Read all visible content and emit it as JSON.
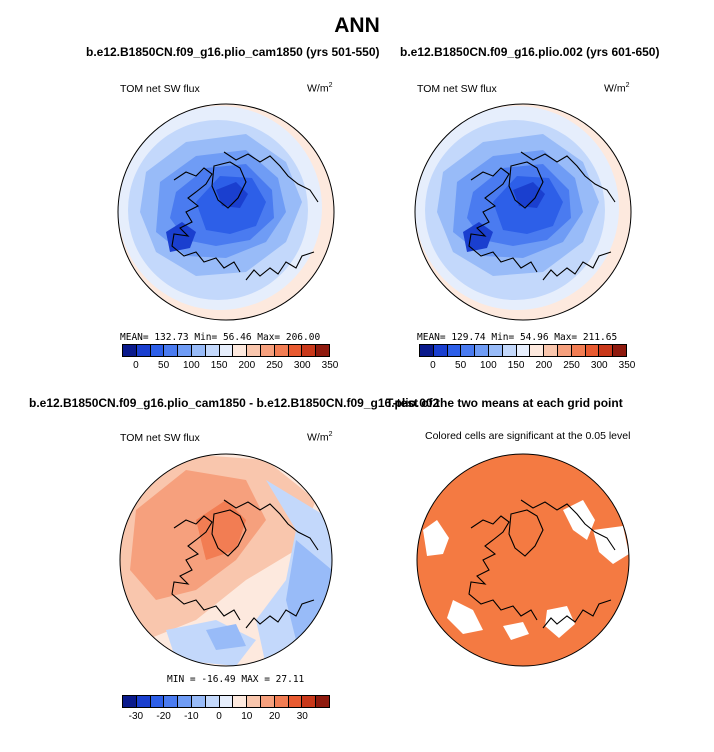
{
  "title": "ANN",
  "panels": [
    {
      "title": "b.e12.B1850CN.f09_g16.plio_cam1850 (yrs 501-550)",
      "left_label": "TOM net SW flux",
      "units_base": "W/m",
      "units_exp": "2",
      "stats": "MEAN= 132.73  Min=  56.46  Max= 206.00"
    },
    {
      "title": "b.e12.B1850CN.f09_g16.plio.002 (yrs 601-650)",
      "left_label": "TOM net SW flux",
      "units_base": "W/m",
      "units_exp": "2",
      "stats": "MEAN= 129.74  Min=  54.96  Max= 211.65"
    },
    {
      "title": "b.e12.B1850CN.f09_g16.plio_cam1850 - b.e12.B1850CN.f09_g16.plio.002",
      "left_label": "TOM net SW flux",
      "units_base": "W/m",
      "units_exp": "2",
      "stats": "MIN =  -16.49  MAX =   27.11"
    },
    {
      "title": "T-test of the two means at each grid point",
      "subtitle": "Colored cells are significant at the 0.05 level"
    }
  ],
  "chart_data": [
    {
      "type": "heatmap",
      "title": "b.e12.B1850CN.f09_g16.plio_cam1850 (yrs 501-550)",
      "variable": "TOM net SW flux",
      "units": "W/m2",
      "projection": "north polar stereographic",
      "mean": 132.73,
      "min": 56.46,
      "max": 206.0,
      "colorbar_ticks": [
        0,
        50,
        100,
        150,
        200,
        250,
        300,
        350
      ],
      "colorbar_colors": [
        "#0a1a8c",
        "#1a3fcf",
        "#2d5fe8",
        "#4a7bf0",
        "#6f9cf5",
        "#98bbf8",
        "#c3d8fb",
        "#e6eefc",
        "#fde9de",
        "#f9c6ad",
        "#f6a07d",
        "#f27d53",
        "#e85a30",
        "#c9381a",
        "#8f1a0e"
      ],
      "colorbar_ticks_text": [
        "0",
        "50",
        "100",
        "150",
        "200",
        "250",
        "300",
        "350"
      ]
    },
    {
      "type": "heatmap",
      "title": "b.e12.B1850CN.f09_g16.plio.002 (yrs 601-650)",
      "variable": "TOM net SW flux",
      "units": "W/m2",
      "projection": "north polar stereographic",
      "mean": 129.74,
      "min": 54.96,
      "max": 211.65,
      "colorbar_ticks": [
        0,
        50,
        100,
        150,
        200,
        250,
        300,
        350
      ],
      "colorbar_colors": [
        "#0a1a8c",
        "#1a3fcf",
        "#2d5fe8",
        "#4a7bf0",
        "#6f9cf5",
        "#98bbf8",
        "#c3d8fb",
        "#e6eefc",
        "#fde9de",
        "#f9c6ad",
        "#f6a07d",
        "#f27d53",
        "#e85a30",
        "#c9381a",
        "#8f1a0e"
      ],
      "colorbar_ticks_text": [
        "0",
        "50",
        "100",
        "150",
        "200",
        "250",
        "300",
        "350"
      ]
    },
    {
      "type": "heatmap",
      "title": "b.e12.B1850CN.f09_g16.plio_cam1850 - b.e12.B1850CN.f09_g16.plio.002",
      "variable": "TOM net SW flux",
      "units": "W/m2",
      "projection": "north polar stereographic",
      "min": -16.49,
      "max": 27.11,
      "colorbar_ticks": [
        -30,
        -20,
        -10,
        0,
        10,
        20,
        30
      ],
      "colorbar_colors": [
        "#0a1a8c",
        "#1a3fcf",
        "#2d5fe8",
        "#4a7bf0",
        "#6f9cf5",
        "#98bbf8",
        "#c3d8fb",
        "#e6eefc",
        "#fde9de",
        "#f9c6ad",
        "#f6a07d",
        "#f27d53",
        "#e85a30",
        "#c9381a",
        "#8f1a0e"
      ],
      "colorbar_ticks_text": [
        "-30",
        "-20",
        "-10",
        "0",
        "10",
        "20",
        "30"
      ]
    },
    {
      "type": "heatmap",
      "title": "T-test of the two means at each grid point",
      "note": "Colored cells are significant at the 0.05 level",
      "significant_color": "#f47a42",
      "insignificant_color": "#ffffff"
    }
  ]
}
